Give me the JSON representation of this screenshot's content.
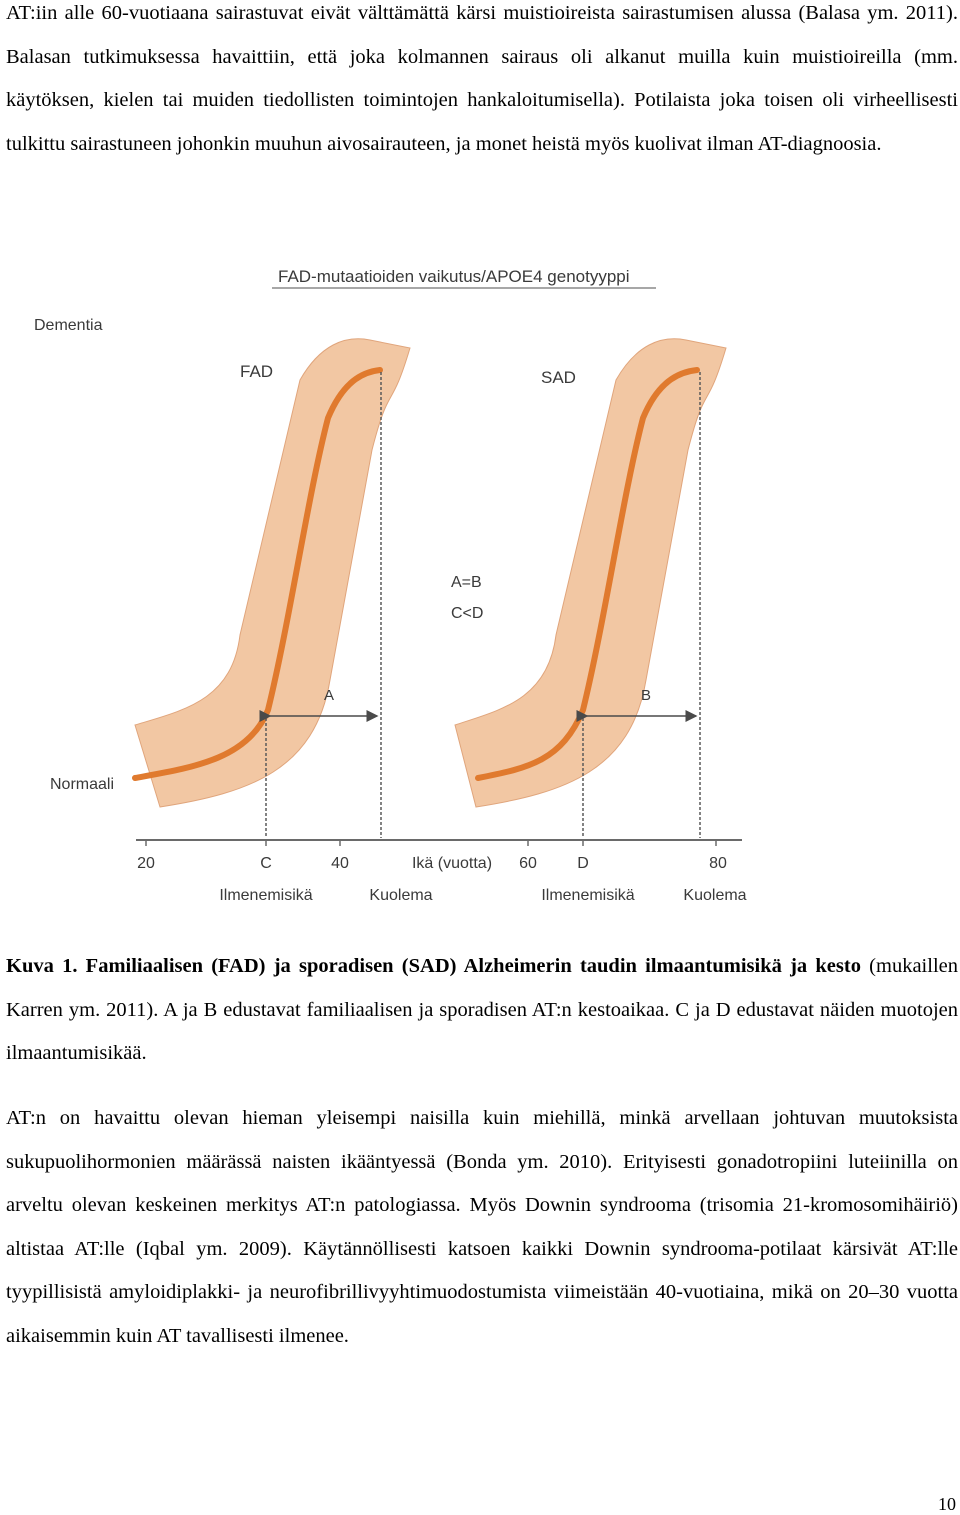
{
  "paragraphs": {
    "p1": "AT:iin alle 60-vuotiaana sairastuvat eivät välttämättä kärsi muistioireista sairastumisen alussa (Balasa ym. 2011). Balasan tutkimuksessa havaittiin, että joka kolmannen sairaus oli alkanut muilla kuin muistioireilla (mm. käytöksen, kielen tai muiden tiedollisten toimintojen hankaloitumisella). Potilaista joka toisen oli virheellisesti tulkittu sairastuneen johonkin muuhun aivosairauteen, ja monet heistä myös kuolivat ilman AT-diagnoosia.",
    "p2": "AT:n on havaittu olevan hieman yleisempi naisilla kuin miehillä, minkä arvellaan johtuvan muutoksista sukupuolihormonien määrässä naisten ikääntyessä (Bonda ym. 2010). Erityisesti gonadotropiini luteiinilla on arveltu olevan keskeinen merkitys AT:n patologiassa. Myös Downin syndrooma (trisomia 21-kromosomihäiriö) altistaa AT:lle (Iqbal ym. 2009). Käytännöllisesti katsoen kaikki Downin syndrooma-potilaat kärsivät AT:lle tyypillisistä amyloidiplakki- ja neurofibrillivyyhtimuodostumista viimeistään 40-vuotiaina, mikä on 20–30 vuotta aikaisemmin kuin AT tavallisesti ilmenee."
  },
  "figure": {
    "title": "FAD-mutaatioiden vaikutus/APOE4 genotyyppi",
    "y_top_label": "Dementia",
    "y_bottom_label": "Normaali",
    "curve_fad_label": "FAD",
    "curve_sad_label": "SAD",
    "relation_1": "A=B",
    "relation_2": "C<D",
    "interval_a": "A",
    "interval_b": "B",
    "x_axis_label": "Ikä (vuotta)",
    "ticks": [
      "20",
      "C",
      "40",
      "60",
      "D",
      "80"
    ],
    "onset_label": "Ilmenemisikä",
    "death_label": "Kuolema",
    "colors": {
      "band": "#f2c7a3",
      "band_edge": "#e0a57c",
      "curve": "#e07a2e",
      "marker": "#5a5a5a"
    }
  },
  "caption": {
    "bold": "Kuva 1. Familiaalisen (FAD) ja sporadisen (SAD) Alzheimerin taudin ilmaantumisikä ja kesto",
    "normal": " (mukaillen Karren ym. 2011). A ja B edustavat familiaalisen ja sporadisen AT:n kestoaikaa. C ja D edustavat näiden muotojen ilmaantumisikää."
  },
  "page_number": "10"
}
